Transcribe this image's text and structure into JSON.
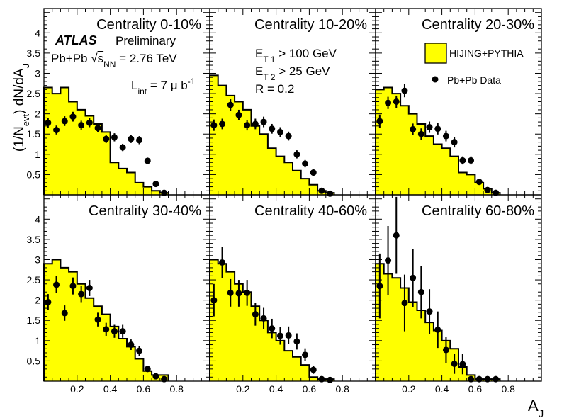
{
  "chart_data": {
    "type": "bar",
    "ylabel": "(1/N_evt) dN/dA_J",
    "ylabel_pre": "(1/N",
    "ylabel_sub1": "evt",
    "ylabel_mid": ") dN/dA",
    "ylabel_sub2": "J",
    "xlabel": "A",
    "xlabel_sub": "J",
    "xlim": [
      0,
      1
    ],
    "ylim": [
      0,
      4.6
    ],
    "x_ticks": [
      0.2,
      0.4,
      0.6,
      0.8
    ],
    "x_tick_labels": [
      "0.2",
      "0.4",
      "0.6",
      "0.8"
    ],
    "y_ticks": [
      0.5,
      1,
      1.5,
      2,
      2.5,
      3,
      3.5,
      4
    ],
    "y_tick_labels": [
      "0.5",
      "1",
      "1.5",
      "2",
      "2.5",
      "3",
      "3.5",
      "4"
    ],
    "bin_edges": [
      0,
      0.05,
      0.1,
      0.15,
      0.2,
      0.25,
      0.3,
      0.35,
      0.4,
      0.45,
      0.5,
      0.55,
      0.6,
      0.65,
      0.7,
      0.75
    ],
    "data_x": [
      0.025,
      0.075,
      0.125,
      0.175,
      0.225,
      0.275,
      0.325,
      0.375,
      0.425,
      0.475,
      0.525,
      0.575,
      0.625,
      0.675,
      0.725
    ],
    "legend": {
      "position": "top-right",
      "entries": [
        {
          "label": "HIJING+PYTHIA",
          "style": "yellow-box"
        },
        {
          "label": "Pb+Pb Data",
          "style": "black-marker"
        }
      ]
    },
    "annotations": {
      "experiment": "ATLAS",
      "preliminary": "Preliminary",
      "system_pre": "Pb+Pb",
      "sqrt_sign": "√",
      "system_s": "s",
      "system_nn": "NN",
      "system_post": "= 2.76 TeV",
      "lumi_pre": "L",
      "lumi_int": "int",
      "lumi_mid": "= 7 μ b",
      "lumi_exp": "-1",
      "cut1_pre": "E",
      "cut1_sub": "T 1",
      "cut1_post": "> 100 GeV",
      "cut2_pre": "E",
      "cut2_sub": "T 2",
      "cut2_post": "> 25 GeV",
      "radius": "R = 0.2"
    },
    "panels": [
      {
        "title": "Centrality  0-10%",
        "hist": [
          2.65,
          2.5,
          2.65,
          2.3,
          2.1,
          1.95,
          1.75,
          1.55,
          0.8,
          0.65,
          0.55,
          0.3,
          0.2,
          0.1,
          0.05
        ],
        "data": [
          1.78,
          1.6,
          1.82,
          1.93,
          1.72,
          1.78,
          1.65,
          1.38,
          1.42,
          1.17,
          1.38,
          1.35,
          0.84,
          0.27,
          0.05
        ],
        "err": [
          0.12,
          0.11,
          0.12,
          0.12,
          0.11,
          0.11,
          0.11,
          0.1,
          0.1,
          0.09,
          0.1,
          0.1,
          0.08,
          0.05,
          0.03
        ]
      },
      {
        "title": "Centrality 10-20%",
        "hist": [
          2.95,
          2.7,
          2.45,
          2.3,
          2.1,
          1.7,
          1.5,
          1.15,
          0.95,
          0.8,
          0.6,
          0.4,
          0.25,
          0.1,
          0.05
        ],
        "data": [
          1.72,
          1.75,
          2.22,
          1.97,
          1.72,
          1.75,
          1.8,
          1.63,
          1.55,
          1.45,
          1.0,
          0.77,
          0.55,
          0.1,
          0.03
        ],
        "err": [
          0.14,
          0.13,
          0.14,
          0.13,
          0.13,
          0.13,
          0.13,
          0.12,
          0.12,
          0.11,
          0.1,
          0.09,
          0.08,
          0.05,
          0.03
        ]
      },
      {
        "title": "Centrality 20-30%",
        "hist": [
          2.6,
          2.65,
          2.5,
          2.2,
          2.0,
          1.75,
          1.45,
          1.25,
          1.15,
          0.95,
          0.55,
          0.5,
          0.3,
          0.15,
          0.05
        ],
        "data": [
          1.82,
          2.27,
          2.3,
          2.57,
          1.62,
          1.5,
          1.67,
          1.63,
          1.45,
          1.3,
          0.85,
          0.85,
          0.32,
          0.12,
          0.05
        ],
        "err": [
          0.16,
          0.15,
          0.15,
          0.16,
          0.14,
          0.14,
          0.14,
          0.14,
          0.13,
          0.13,
          0.1,
          0.1,
          0.07,
          0.05,
          0.03
        ]
      },
      {
        "title": "Centrality 30-40%",
        "hist": [
          2.9,
          3.0,
          2.8,
          2.7,
          2.4,
          2.05,
          1.85,
          1.65,
          1.35,
          1.05,
          0.85,
          0.55,
          0.25,
          0.15,
          0.15
        ],
        "data": [
          1.95,
          2.38,
          1.68,
          2.35,
          2.15,
          2.3,
          1.52,
          1.28,
          1.23,
          1.23,
          0.9,
          0.75,
          0.3,
          0.12,
          0.05
        ],
        "err": [
          0.2,
          0.21,
          0.19,
          0.21,
          0.2,
          0.2,
          0.17,
          0.16,
          0.16,
          0.16,
          0.13,
          0.12,
          0.07,
          0.05,
          0.03
        ]
      },
      {
        "title": "Centrality 40-60%",
        "hist": [
          3.0,
          2.9,
          2.7,
          2.4,
          2.2,
          1.85,
          1.5,
          1.2,
          1.0,
          0.75,
          0.6,
          0.4,
          0.1,
          0.05,
          0.05
        ],
        "data": [
          2.0,
          2.93,
          2.18,
          2.17,
          2.18,
          1.65,
          1.55,
          1.3,
          1.12,
          1.13,
          0.98,
          0.65,
          0.28,
          0.05,
          0.03
        ],
        "err": [
          0.4,
          0.38,
          0.34,
          0.33,
          0.32,
          0.28,
          0.26,
          0.24,
          0.22,
          0.22,
          0.2,
          0.16,
          0.1,
          0.05,
          0.03
        ]
      },
      {
        "title": "Centrality 60-80%",
        "hist": [
          2.9,
          2.65,
          2.55,
          2.3,
          1.95,
          1.75,
          1.45,
          1.25,
          1.0,
          0.8,
          0.35,
          0.15,
          0.05,
          0.05,
          0.05
        ],
        "data": [
          2.35,
          2.98,
          3.6,
          1.93,
          2.55,
          2.2,
          1.72,
          1.27,
          0.77,
          0.43,
          0.42,
          0.05,
          0.05,
          0.05,
          0.05
        ],
        "err": [
          0.8,
          0.85,
          0.95,
          0.7,
          0.72,
          0.65,
          0.55,
          0.45,
          0.32,
          0.25,
          0.25,
          0.05,
          0.03,
          0.03,
          0.03
        ]
      }
    ]
  }
}
